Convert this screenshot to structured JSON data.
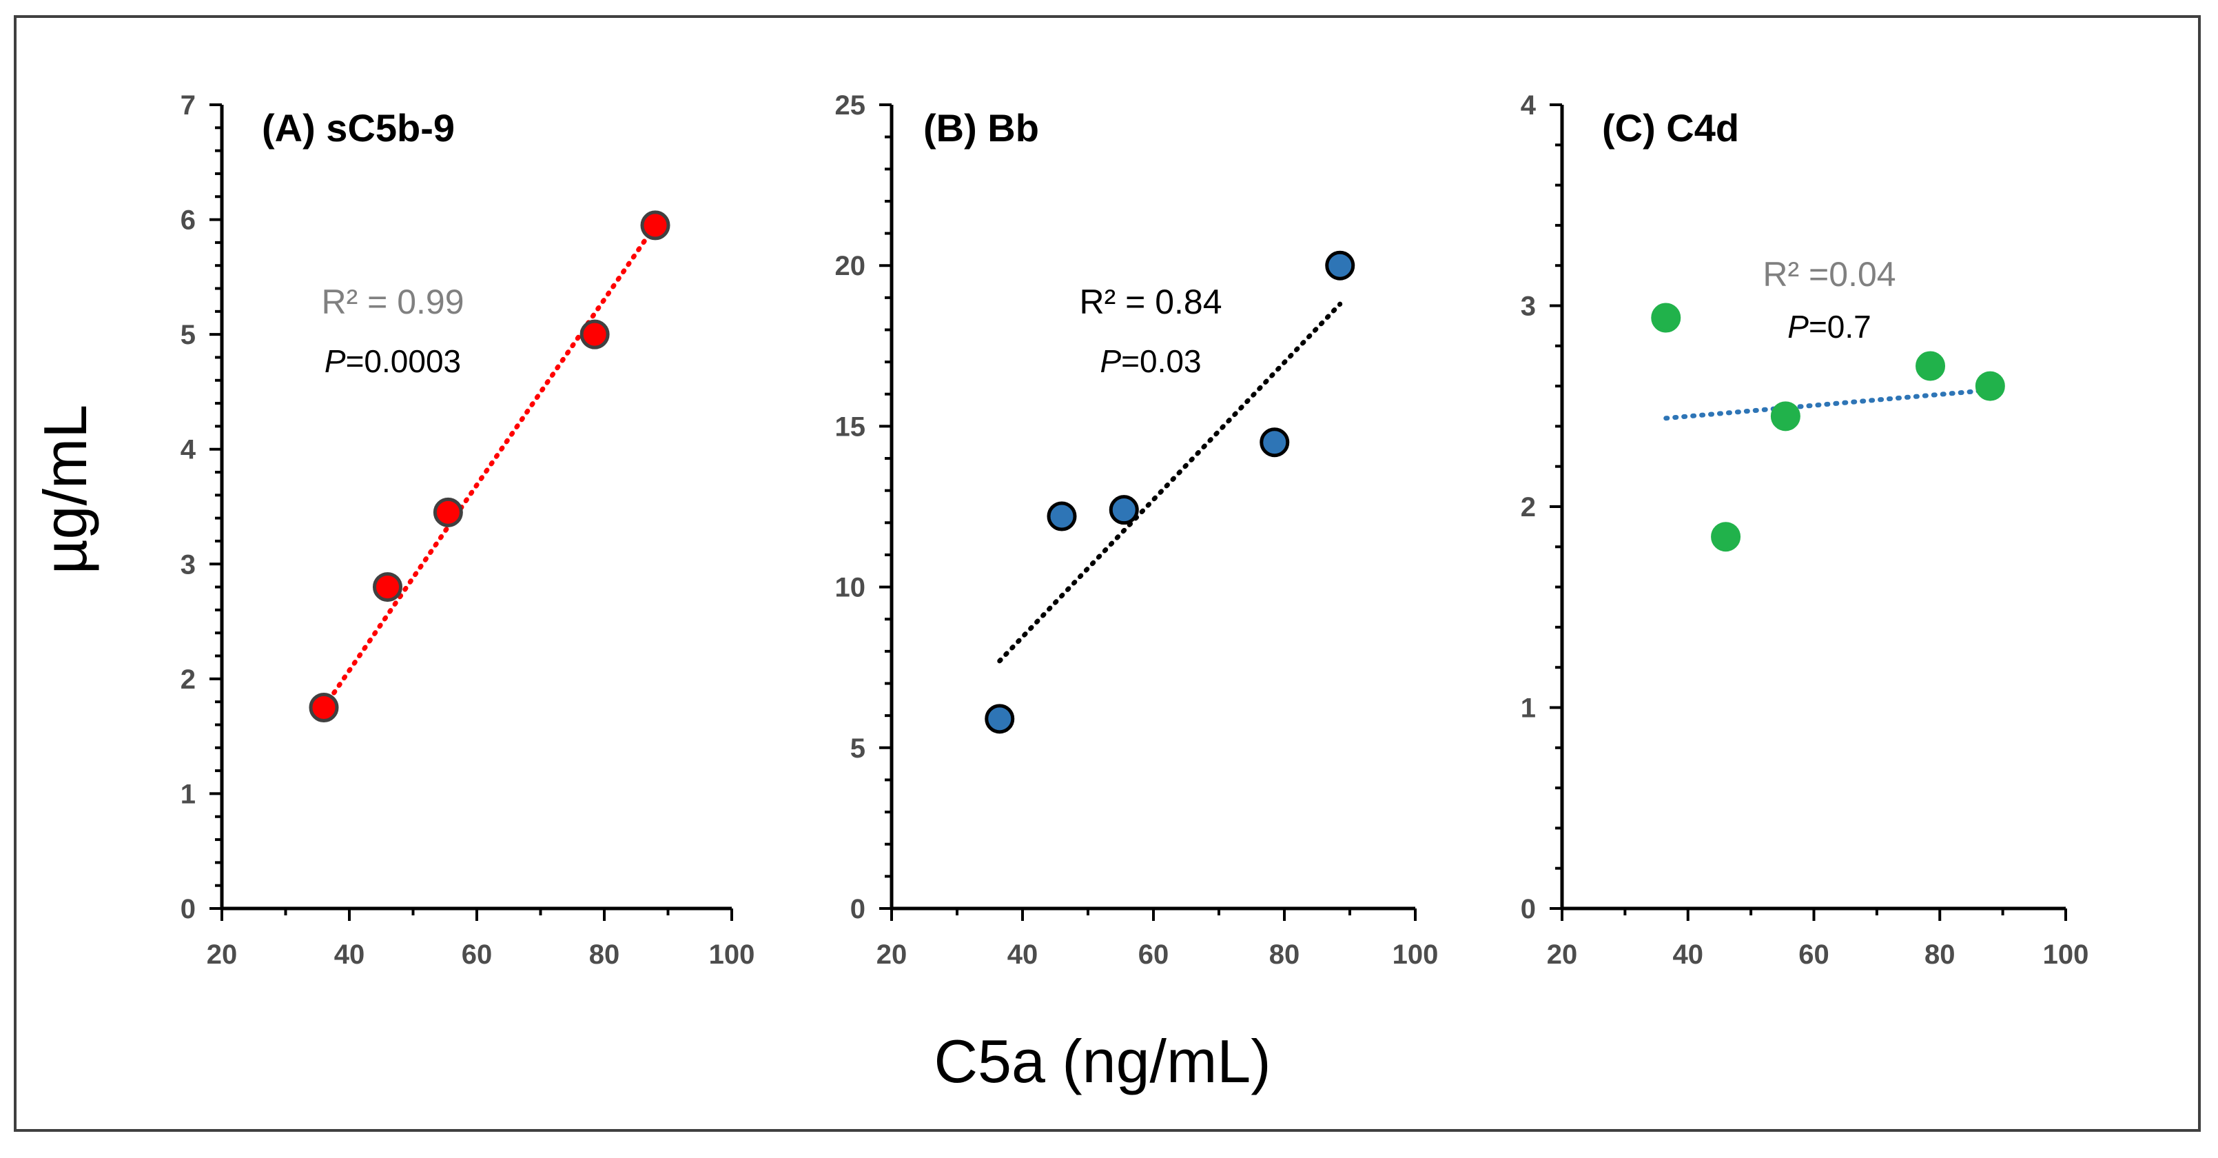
{
  "figure": {
    "y_axis_label": "µg/mL",
    "x_axis_label": "C5a (ng/mL)"
  },
  "chart_data": [
    {
      "type": "scatter",
      "title": "(A) sC5b-9",
      "xlabel": "C5a (ng/mL)",
      "ylabel": "µg/mL",
      "xlim": [
        20,
        100
      ],
      "ylim": [
        0,
        7
      ],
      "x_ticks": [
        20,
        40,
        60,
        80,
        100
      ],
      "y_ticks": [
        0,
        1,
        2,
        3,
        4,
        5,
        6,
        7
      ],
      "points": [
        {
          "x": 36,
          "y": 1.75
        },
        {
          "x": 46,
          "y": 2.8
        },
        {
          "x": 55.5,
          "y": 3.45
        },
        {
          "x": 78.5,
          "y": 5.0
        },
        {
          "x": 88,
          "y": 5.95
        }
      ],
      "trendline": {
        "x": [
          36,
          88
        ],
        "y": [
          1.75,
          5.95
        ]
      },
      "marker_color": "#ff0000",
      "marker_edge": "#404040",
      "trend_color": "#ff0000",
      "r2_label": "R² = 0.99",
      "r2_color": "#808080",
      "p_prefix": "P",
      "p_value": "=0.0003"
    },
    {
      "type": "scatter",
      "title": "(B) Bb",
      "xlabel": "C5a (ng/mL)",
      "ylabel": "µg/mL",
      "xlim": [
        20,
        100
      ],
      "ylim": [
        0,
        25
      ],
      "x_ticks": [
        20,
        40,
        60,
        80,
        100
      ],
      "y_ticks": [
        0,
        5,
        10,
        15,
        20,
        25
      ],
      "points": [
        {
          "x": 36.5,
          "y": 5.9
        },
        {
          "x": 46,
          "y": 12.2
        },
        {
          "x": 55.5,
          "y": 12.4
        },
        {
          "x": 78.5,
          "y": 14.5
        },
        {
          "x": 88.5,
          "y": 20.0
        }
      ],
      "trendline": {
        "x": [
          36.5,
          88.5
        ],
        "y": [
          7.7,
          18.8
        ]
      },
      "marker_color": "#2e75b6",
      "marker_edge": "#000000",
      "trend_color": "#000000",
      "r2_label": "R² = 0.84",
      "r2_color": "#000000",
      "p_prefix": "P",
      "p_value": "=0.03"
    },
    {
      "type": "scatter",
      "title": "(C) C4d",
      "xlabel": "C5a (ng/mL)",
      "ylabel": "µg/mL",
      "xlim": [
        20,
        100
      ],
      "ylim": [
        0,
        4
      ],
      "x_ticks": [
        20,
        40,
        60,
        80,
        100
      ],
      "y_ticks": [
        0,
        1,
        2,
        3,
        4
      ],
      "points": [
        {
          "x": 36.5,
          "y": 2.94
        },
        {
          "x": 46,
          "y": 1.85
        },
        {
          "x": 55.5,
          "y": 2.45
        },
        {
          "x": 78.5,
          "y": 2.7
        },
        {
          "x": 88,
          "y": 2.6
        }
      ],
      "trendline": {
        "x": [
          36.5,
          88
        ],
        "y": [
          2.44,
          2.58
        ]
      },
      "marker_color": "#21b24b",
      "marker_edge": "#21b24b",
      "trend_color": "#2e75b6",
      "r2_label": "R² =0.04",
      "r2_color": "#808080",
      "p_prefix": "P",
      "p_value": "=0.7"
    }
  ]
}
